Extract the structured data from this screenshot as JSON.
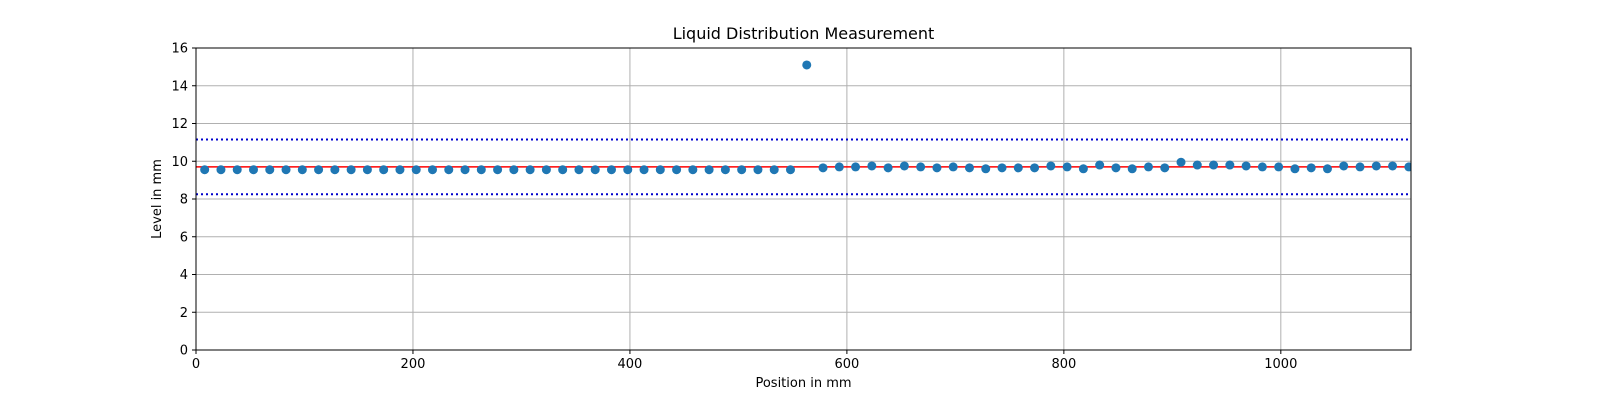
{
  "chart_data": {
    "type": "scatter",
    "title": "Liquid Distribution Measurement",
    "xlabel": "Position in mm",
    "ylabel": "Level in mm",
    "xlim": [
      0,
      1120
    ],
    "ylim": [
      0,
      16
    ],
    "xticks": [
      0,
      200,
      400,
      600,
      800,
      1000
    ],
    "yticks": [
      0,
      2,
      4,
      6,
      8,
      10,
      12,
      14,
      16
    ],
    "grid": true,
    "legend": "none",
    "colors": {
      "points": "#1f77b4",
      "mean_line": "#ff0000",
      "limit_lines": "#0000cc",
      "grid": "#b0b0b0"
    },
    "series": [
      {
        "type": "scatter",
        "x": [
          8,
          23,
          38,
          53,
          68,
          83,
          98,
          113,
          128,
          143,
          158,
          173,
          188,
          203,
          218,
          233,
          248,
          263,
          278,
          293,
          308,
          323,
          338,
          353,
          368,
          383,
          398,
          413,
          428,
          443,
          458,
          473,
          488,
          503,
          518,
          533,
          548,
          563,
          578,
          593,
          608,
          623,
          638,
          653,
          668,
          683,
          698,
          713,
          728,
          743,
          758,
          773,
          788,
          803,
          818,
          833,
          848,
          863,
          878,
          893,
          908,
          923,
          938,
          953,
          968,
          983,
          998,
          1013,
          1028,
          1043,
          1058,
          1073,
          1088,
          1103,
          1118
        ],
        "y": [
          9.55,
          9.55,
          9.55,
          9.55,
          9.55,
          9.55,
          9.55,
          9.55,
          9.55,
          9.55,
          9.55,
          9.55,
          9.55,
          9.55,
          9.55,
          9.55,
          9.55,
          9.55,
          9.55,
          9.55,
          9.55,
          9.55,
          9.55,
          9.55,
          9.55,
          9.55,
          9.55,
          9.55,
          9.55,
          9.55,
          9.55,
          9.55,
          9.55,
          9.55,
          9.55,
          9.55,
          9.55,
          15.1,
          9.65,
          9.7,
          9.7,
          9.75,
          9.65,
          9.75,
          9.7,
          9.65,
          9.7,
          9.65,
          9.6,
          9.65,
          9.65,
          9.65,
          9.75,
          9.7,
          9.6,
          9.8,
          9.65,
          9.6,
          9.7,
          9.65,
          9.95,
          9.8,
          9.8,
          9.8,
          9.75,
          9.7,
          9.7,
          9.6,
          9.65,
          9.6,
          9.75,
          9.7,
          9.75,
          9.75,
          9.7
        ]
      },
      {
        "type": "hline",
        "y": 9.7,
        "style": "solid"
      },
      {
        "type": "hline",
        "y": 11.15,
        "style": "dotted"
      },
      {
        "type": "hline",
        "y": 8.25,
        "style": "dotted"
      }
    ]
  }
}
